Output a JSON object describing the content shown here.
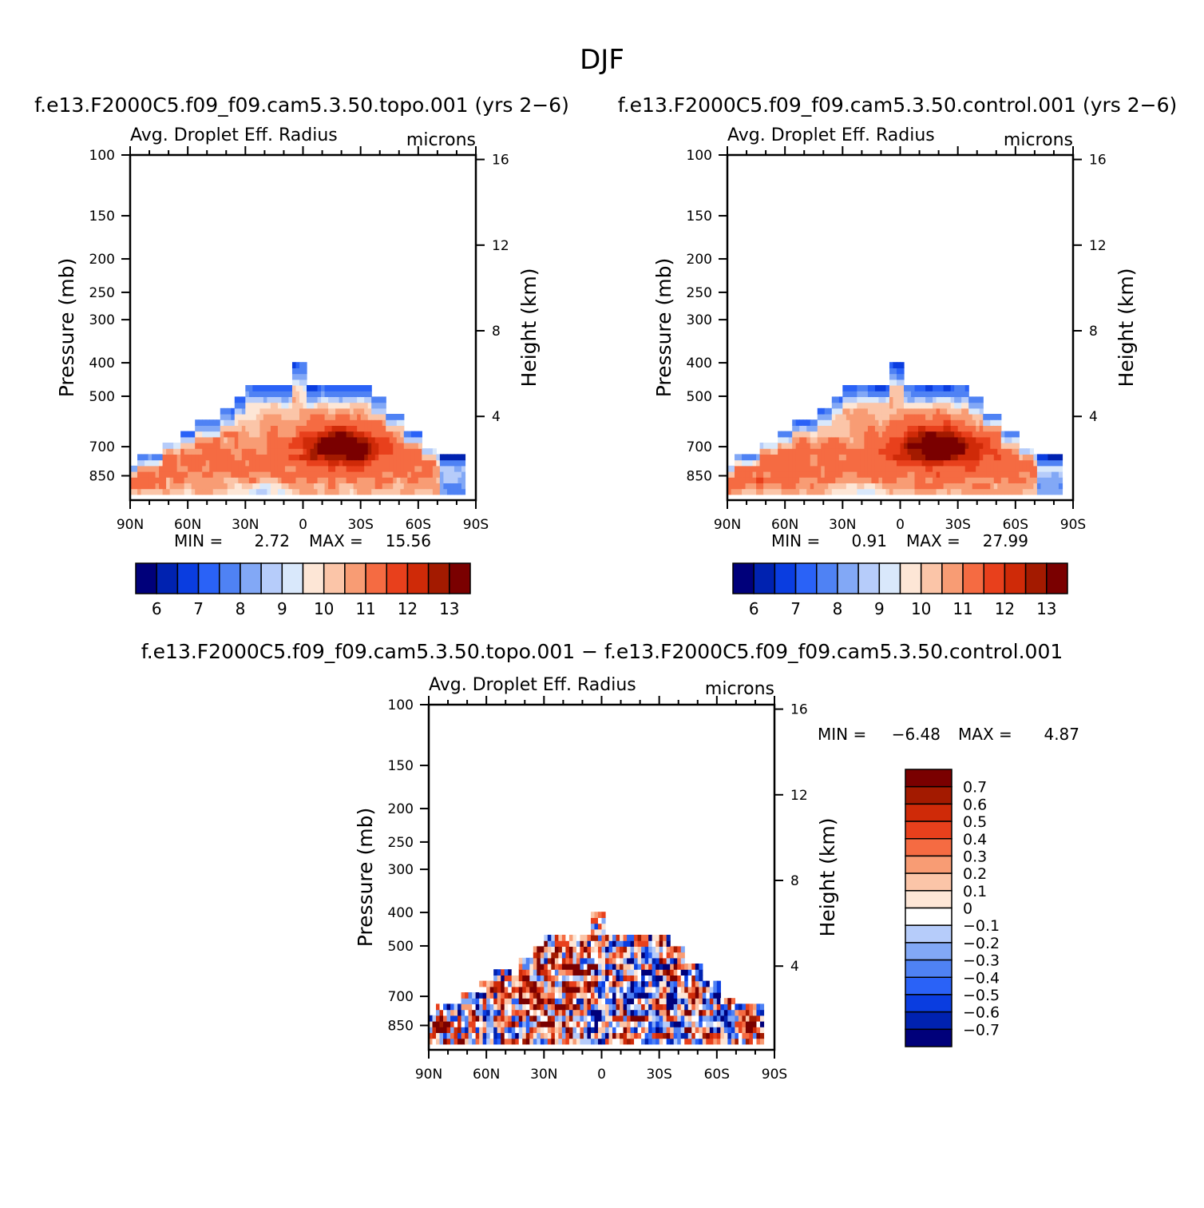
{
  "figure": {
    "title": "DJF"
  },
  "chart_data": [
    {
      "type": "heatmap",
      "id": "topo",
      "title": "f.e13.F2000C5.f09_f09.cam5.3.50.topo.001  (yrs 2-6)",
      "left_label": "Avg. Droplet Eff. Radius",
      "right_label": "microns",
      "xlabel": "",
      "ylabel": "Pressure (mb)",
      "ylabel_right": "Height (km)",
      "xticks": [
        {
          "lat": 90,
          "label": "90N"
        },
        {
          "lat": 60,
          "label": "60N"
        },
        {
          "lat": 30,
          "label": "30N"
        },
        {
          "lat": 0,
          "label": "0"
        },
        {
          "lat": -30,
          "label": "30S"
        },
        {
          "lat": -60,
          "label": "60S"
        },
        {
          "lat": -90,
          "label": "90S"
        }
      ],
      "yticks": [
        100,
        150,
        200,
        250,
        300,
        400,
        500,
        700,
        850
      ],
      "ylim": [
        1000,
        100
      ],
      "height_ticks": [
        4,
        8,
        12,
        16
      ],
      "min_label": "MIN =",
      "min_value": "2.72",
      "max_label": "MAX =",
      "max_value": "15.56",
      "levels": [
        5.5,
        6,
        6.5,
        7,
        7.5,
        8,
        8.5,
        9,
        9.5,
        10,
        10.5,
        11,
        11.5,
        12,
        12.5,
        13,
        13.5
      ],
      "colorbar_labels": [
        "6",
        "7",
        "8",
        "9",
        "10",
        "11",
        "12",
        "13"
      ]
    },
    {
      "type": "heatmap",
      "id": "control",
      "title": "f.e13.F2000C5.f09_f09.cam5.3.50.control.001  (yrs 2-6)",
      "left_label": "Avg. Droplet Eff. Radius",
      "right_label": "microns",
      "xlabel": "",
      "ylabel": "Pressure (mb)",
      "ylabel_right": "Height (km)",
      "xticks": [
        {
          "lat": 90,
          "label": "90N"
        },
        {
          "lat": 60,
          "label": "60N"
        },
        {
          "lat": 30,
          "label": "30N"
        },
        {
          "lat": 0,
          "label": "0"
        },
        {
          "lat": -30,
          "label": "30S"
        },
        {
          "lat": -60,
          "label": "60S"
        },
        {
          "lat": -90,
          "label": "90S"
        }
      ],
      "yticks": [
        100,
        150,
        200,
        250,
        300,
        400,
        500,
        700,
        850
      ],
      "ylim": [
        1000,
        100
      ],
      "height_ticks": [
        4,
        8,
        12,
        16
      ],
      "min_label": "MIN =",
      "min_value": "0.91",
      "max_label": "MAX =",
      "max_value": "27.99",
      "levels": [
        5.5,
        6,
        6.5,
        7,
        7.5,
        8,
        8.5,
        9,
        9.5,
        10,
        10.5,
        11,
        11.5,
        12,
        12.5,
        13,
        13.5
      ],
      "colorbar_labels": [
        "6",
        "7",
        "8",
        "9",
        "10",
        "11",
        "12",
        "13"
      ]
    },
    {
      "type": "heatmap",
      "id": "diff",
      "title": "f.e13.F2000C5.f09_f09.cam5.3.50.topo.001 - f.e13.F2000C5.f09_f09.cam5.3.50.control.001",
      "left_label": "Avg. Droplet Eff. Radius",
      "right_label": "microns",
      "xlabel": "",
      "ylabel": "Pressure (mb)",
      "ylabel_right": "Height (km)",
      "xticks": [
        {
          "lat": 90,
          "label": "90N"
        },
        {
          "lat": 60,
          "label": "60N"
        },
        {
          "lat": 30,
          "label": "30N"
        },
        {
          "lat": 0,
          "label": "0"
        },
        {
          "lat": -30,
          "label": "30S"
        },
        {
          "lat": -60,
          "label": "60S"
        },
        {
          "lat": -90,
          "label": "90S"
        }
      ],
      "yticks": [
        100,
        150,
        200,
        250,
        300,
        400,
        500,
        700,
        850
      ],
      "ylim": [
        1000,
        100
      ],
      "height_ticks": [
        4,
        8,
        12,
        16
      ],
      "min_label": "MIN =",
      "min_value": "-6.48",
      "max_label": "MAX =",
      "max_value": "4.87",
      "levels": [
        -0.7,
        -0.6,
        -0.5,
        -0.4,
        -0.3,
        -0.2,
        -0.1,
        0,
        0.1,
        0.2,
        0.3,
        0.4,
        0.5,
        0.6,
        0.7
      ],
      "colorbar_labels": [
        "0.7",
        "0.6",
        "0.5",
        "0.4",
        "0.3",
        "0.2",
        "0.1",
        "0",
        "-0.1",
        "-0.2",
        "-0.3",
        "-0.4",
        "-0.5",
        "-0.6",
        "-0.7"
      ]
    }
  ],
  "colormap": [
    "#00007a",
    "#0022b0",
    "#0a3de0",
    "#2a62f7",
    "#4f82f4",
    "#82a8f6",
    "#b6ccfa",
    "#d9e8fb",
    "#fde6d6",
    "#fbc5a8",
    "#f89c74",
    "#f56b42",
    "#e8401c",
    "#cf2a08",
    "#a31a00",
    "#7a0000"
  ]
}
